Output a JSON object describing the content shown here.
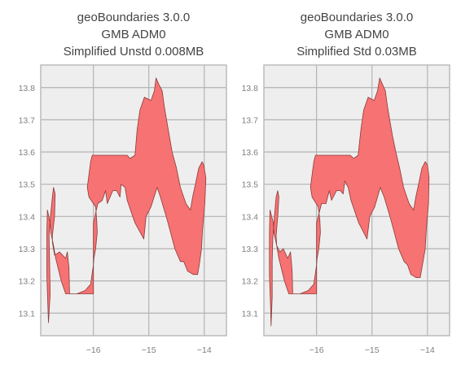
{
  "colors": {
    "figure_bg": "#ffffff",
    "axes_bg": "#eeeeee",
    "grid": "#b3b3b3",
    "spine": "#bcbcbc",
    "fill": "#f77272",
    "edge": "#8a3b3b",
    "title": "#444444",
    "tick": "#7f7f7f"
  },
  "chart_data": [
    {
      "type": "map",
      "title_lines": [
        "geoBoundaries 3.0.0",
        "GMB ADM0",
        "Simplified Unstd 0.008MB"
      ],
      "xlabel": "",
      "ylabel": "",
      "xlim": [
        -16.95,
        -13.6
      ],
      "ylim": [
        13.03,
        13.87
      ],
      "xticks": [
        -16,
        -15,
        -14
      ],
      "xtick_labels": [
        "−16",
        "−15",
        "−14"
      ],
      "yticks": [
        13.1,
        13.2,
        13.3,
        13.4,
        13.5,
        13.6,
        13.7,
        13.8
      ],
      "ytick_labels": [
        "13.1",
        "13.2",
        "13.3",
        "13.4",
        "13.5",
        "13.6",
        "13.7",
        "13.8"
      ],
      "grid": true,
      "polygon": [
        [
          -16.81,
          13.07
        ],
        [
          -16.78,
          13.16
        ],
        [
          -16.79,
          13.26
        ],
        [
          -16.8,
          13.34
        ],
        [
          -16.77,
          13.41
        ],
        [
          -16.74,
          13.46
        ],
        [
          -16.72,
          13.49
        ],
        [
          -16.69,
          13.47
        ],
        [
          -16.7,
          13.4
        ],
        [
          -16.74,
          13.34
        ],
        [
          -16.74,
          13.32
        ],
        [
          -16.7,
          13.28
        ],
        [
          -16.61,
          13.29
        ],
        [
          -16.5,
          13.27
        ],
        [
          -16.47,
          13.29
        ],
        [
          -16.44,
          13.24
        ],
        [
          -16.43,
          13.16
        ],
        [
          -16.0,
          13.16
        ],
        [
          -16.0,
          13.38
        ],
        [
          -15.92,
          13.44
        ],
        [
          -15.84,
          13.45
        ],
        [
          -15.78,
          13.48
        ],
        [
          -15.75,
          13.44
        ],
        [
          -15.65,
          13.48
        ],
        [
          -15.58,
          13.48
        ],
        [
          -15.52,
          13.46
        ],
        [
          -15.5,
          13.5
        ],
        [
          -15.43,
          13.49
        ],
        [
          -15.39,
          13.45
        ],
        [
          -15.25,
          13.38
        ],
        [
          -15.09,
          13.33
        ],
        [
          -15.05,
          13.4
        ],
        [
          -14.96,
          13.43
        ],
        [
          -14.85,
          13.49
        ],
        [
          -14.79,
          13.46
        ],
        [
          -14.67,
          13.39
        ],
        [
          -14.53,
          13.3
        ],
        [
          -14.43,
          13.26
        ],
        [
          -14.37,
          13.26
        ],
        [
          -14.3,
          13.23
        ],
        [
          -14.2,
          13.22
        ],
        [
          -14.12,
          13.22
        ],
        [
          -14.09,
          13.25
        ],
        [
          -14.05,
          13.3
        ],
        [
          -14.03,
          13.36
        ],
        [
          -13.99,
          13.44
        ],
        [
          -13.97,
          13.52
        ],
        [
          -14.01,
          13.56
        ],
        [
          -14.04,
          13.57
        ],
        [
          -14.1,
          13.55
        ],
        [
          -14.16,
          13.5
        ],
        [
          -14.21,
          13.46
        ],
        [
          -14.25,
          13.42
        ],
        [
          -14.33,
          13.44
        ],
        [
          -14.43,
          13.49
        ],
        [
          -14.5,
          13.55
        ],
        [
          -14.58,
          13.6
        ],
        [
          -14.63,
          13.65
        ],
        [
          -14.68,
          13.7
        ],
        [
          -14.72,
          13.74
        ],
        [
          -14.76,
          13.79
        ],
        [
          -14.82,
          13.81
        ],
        [
          -14.87,
          13.83
        ],
        [
          -14.9,
          13.79
        ],
        [
          -14.96,
          13.76
        ],
        [
          -15.08,
          13.77
        ],
        [
          -15.16,
          13.73
        ],
        [
          -15.21,
          13.67
        ],
        [
          -15.25,
          13.59
        ],
        [
          -15.34,
          13.58
        ],
        [
          -15.39,
          13.59
        ],
        [
          -16.02,
          13.59
        ],
        [
          -16.05,
          13.57
        ],
        [
          -16.08,
          13.53
        ],
        [
          -16.11,
          13.49
        ],
        [
          -16.08,
          13.46
        ],
        [
          -15.96,
          13.43
        ],
        [
          -15.94,
          13.39
        ],
        [
          -15.93,
          13.35
        ],
        [
          -15.96,
          13.3
        ],
        [
          -15.99,
          13.27
        ],
        [
          -16.0,
          13.25
        ],
        [
          -16.05,
          13.19
        ],
        [
          -16.15,
          13.17
        ],
        [
          -16.3,
          13.16
        ],
        [
          -16.5,
          13.16
        ],
        [
          -16.58,
          13.2
        ],
        [
          -16.68,
          13.27
        ],
        [
          -16.72,
          13.31
        ],
        [
          -16.77,
          13.35
        ],
        [
          -16.78,
          13.38
        ],
        [
          -16.83,
          13.42
        ],
        [
          -16.84,
          13.35
        ],
        [
          -16.84,
          13.22
        ],
        [
          -16.82,
          13.12
        ],
        [
          -16.81,
          13.07
        ]
      ]
    },
    {
      "type": "map",
      "title_lines": [
        "geoBoundaries 3.0.0",
        "GMB ADM0",
        "Simplified Std 0.03MB"
      ],
      "xlabel": "",
      "ylabel": "",
      "xlim": [
        -16.95,
        -13.6
      ],
      "ylim": [
        13.03,
        13.87
      ],
      "xticks": [
        -16,
        -15,
        -14
      ],
      "xtick_labels": [
        "−16",
        "−15",
        "−14"
      ],
      "yticks": [
        13.1,
        13.2,
        13.3,
        13.4,
        13.5,
        13.6,
        13.7,
        13.8
      ],
      "ytick_labels": [
        "13.1",
        "13.2",
        "13.3",
        "13.4",
        "13.5",
        "13.6",
        "13.7",
        "13.8"
      ],
      "grid": true,
      "polygon": [
        [
          -16.82,
          13.06
        ],
        [
          -16.8,
          13.15
        ],
        [
          -16.8,
          13.26
        ],
        [
          -16.79,
          13.33
        ],
        [
          -16.76,
          13.4
        ],
        [
          -16.73,
          13.46
        ],
        [
          -16.7,
          13.48
        ],
        [
          -16.68,
          13.46
        ],
        [
          -16.7,
          13.4
        ],
        [
          -16.73,
          13.34
        ],
        [
          -16.72,
          13.31
        ],
        [
          -16.66,
          13.29
        ],
        [
          -16.6,
          13.3
        ],
        [
          -16.52,
          13.27
        ],
        [
          -16.47,
          13.29
        ],
        [
          -16.44,
          13.23
        ],
        [
          -16.43,
          13.16
        ],
        [
          -16.0,
          13.16
        ],
        [
          -16.0,
          13.38
        ],
        [
          -15.91,
          13.44
        ],
        [
          -15.83,
          13.44
        ],
        [
          -15.77,
          13.48
        ],
        [
          -15.73,
          13.45
        ],
        [
          -15.64,
          13.48
        ],
        [
          -15.57,
          13.48
        ],
        [
          -15.52,
          13.47
        ],
        [
          -15.49,
          13.51
        ],
        [
          -15.43,
          13.49
        ],
        [
          -15.38,
          13.45
        ],
        [
          -15.24,
          13.38
        ],
        [
          -15.09,
          13.33
        ],
        [
          -15.04,
          13.4
        ],
        [
          -14.95,
          13.43
        ],
        [
          -14.85,
          13.49
        ],
        [
          -14.78,
          13.46
        ],
        [
          -14.66,
          13.39
        ],
        [
          -14.52,
          13.3
        ],
        [
          -14.42,
          13.26
        ],
        [
          -14.36,
          13.25
        ],
        [
          -14.3,
          13.22
        ],
        [
          -14.2,
          13.21
        ],
        [
          -14.13,
          13.21
        ],
        [
          -14.09,
          13.25
        ],
        [
          -14.04,
          13.3
        ],
        [
          -14.02,
          13.36
        ],
        [
          -13.98,
          13.44
        ],
        [
          -13.97,
          13.52
        ],
        [
          -14.0,
          13.56
        ],
        [
          -14.04,
          13.57
        ],
        [
          -14.1,
          13.55
        ],
        [
          -14.16,
          13.5
        ],
        [
          -14.21,
          13.46
        ],
        [
          -14.25,
          13.42
        ],
        [
          -14.33,
          13.44
        ],
        [
          -14.43,
          13.49
        ],
        [
          -14.5,
          13.55
        ],
        [
          -14.57,
          13.6
        ],
        [
          -14.63,
          13.65
        ],
        [
          -14.68,
          13.7
        ],
        [
          -14.72,
          13.74
        ],
        [
          -14.76,
          13.79
        ],
        [
          -14.81,
          13.81
        ],
        [
          -14.86,
          13.83
        ],
        [
          -14.9,
          13.79
        ],
        [
          -14.96,
          13.76
        ],
        [
          -15.07,
          13.77
        ],
        [
          -15.15,
          13.73
        ],
        [
          -15.2,
          13.67
        ],
        [
          -15.25,
          13.59
        ],
        [
          -15.33,
          13.58
        ],
        [
          -15.39,
          13.59
        ],
        [
          -16.02,
          13.59
        ],
        [
          -16.05,
          13.57
        ],
        [
          -16.08,
          13.53
        ],
        [
          -16.11,
          13.49
        ],
        [
          -16.08,
          13.46
        ],
        [
          -15.97,
          13.43
        ],
        [
          -15.94,
          13.39
        ],
        [
          -15.93,
          13.35
        ],
        [
          -15.96,
          13.3
        ],
        [
          -15.99,
          13.27
        ],
        [
          -16.0,
          13.25
        ],
        [
          -16.05,
          13.19
        ],
        [
          -16.15,
          13.17
        ],
        [
          -16.3,
          13.16
        ],
        [
          -16.5,
          13.16
        ],
        [
          -16.58,
          13.2
        ],
        [
          -16.68,
          13.27
        ],
        [
          -16.72,
          13.31
        ],
        [
          -16.77,
          13.35
        ],
        [
          -16.78,
          13.38
        ],
        [
          -16.84,
          13.42
        ],
        [
          -16.85,
          13.35
        ],
        [
          -16.85,
          13.22
        ],
        [
          -16.83,
          13.12
        ],
        [
          -16.82,
          13.06
        ]
      ]
    }
  ]
}
